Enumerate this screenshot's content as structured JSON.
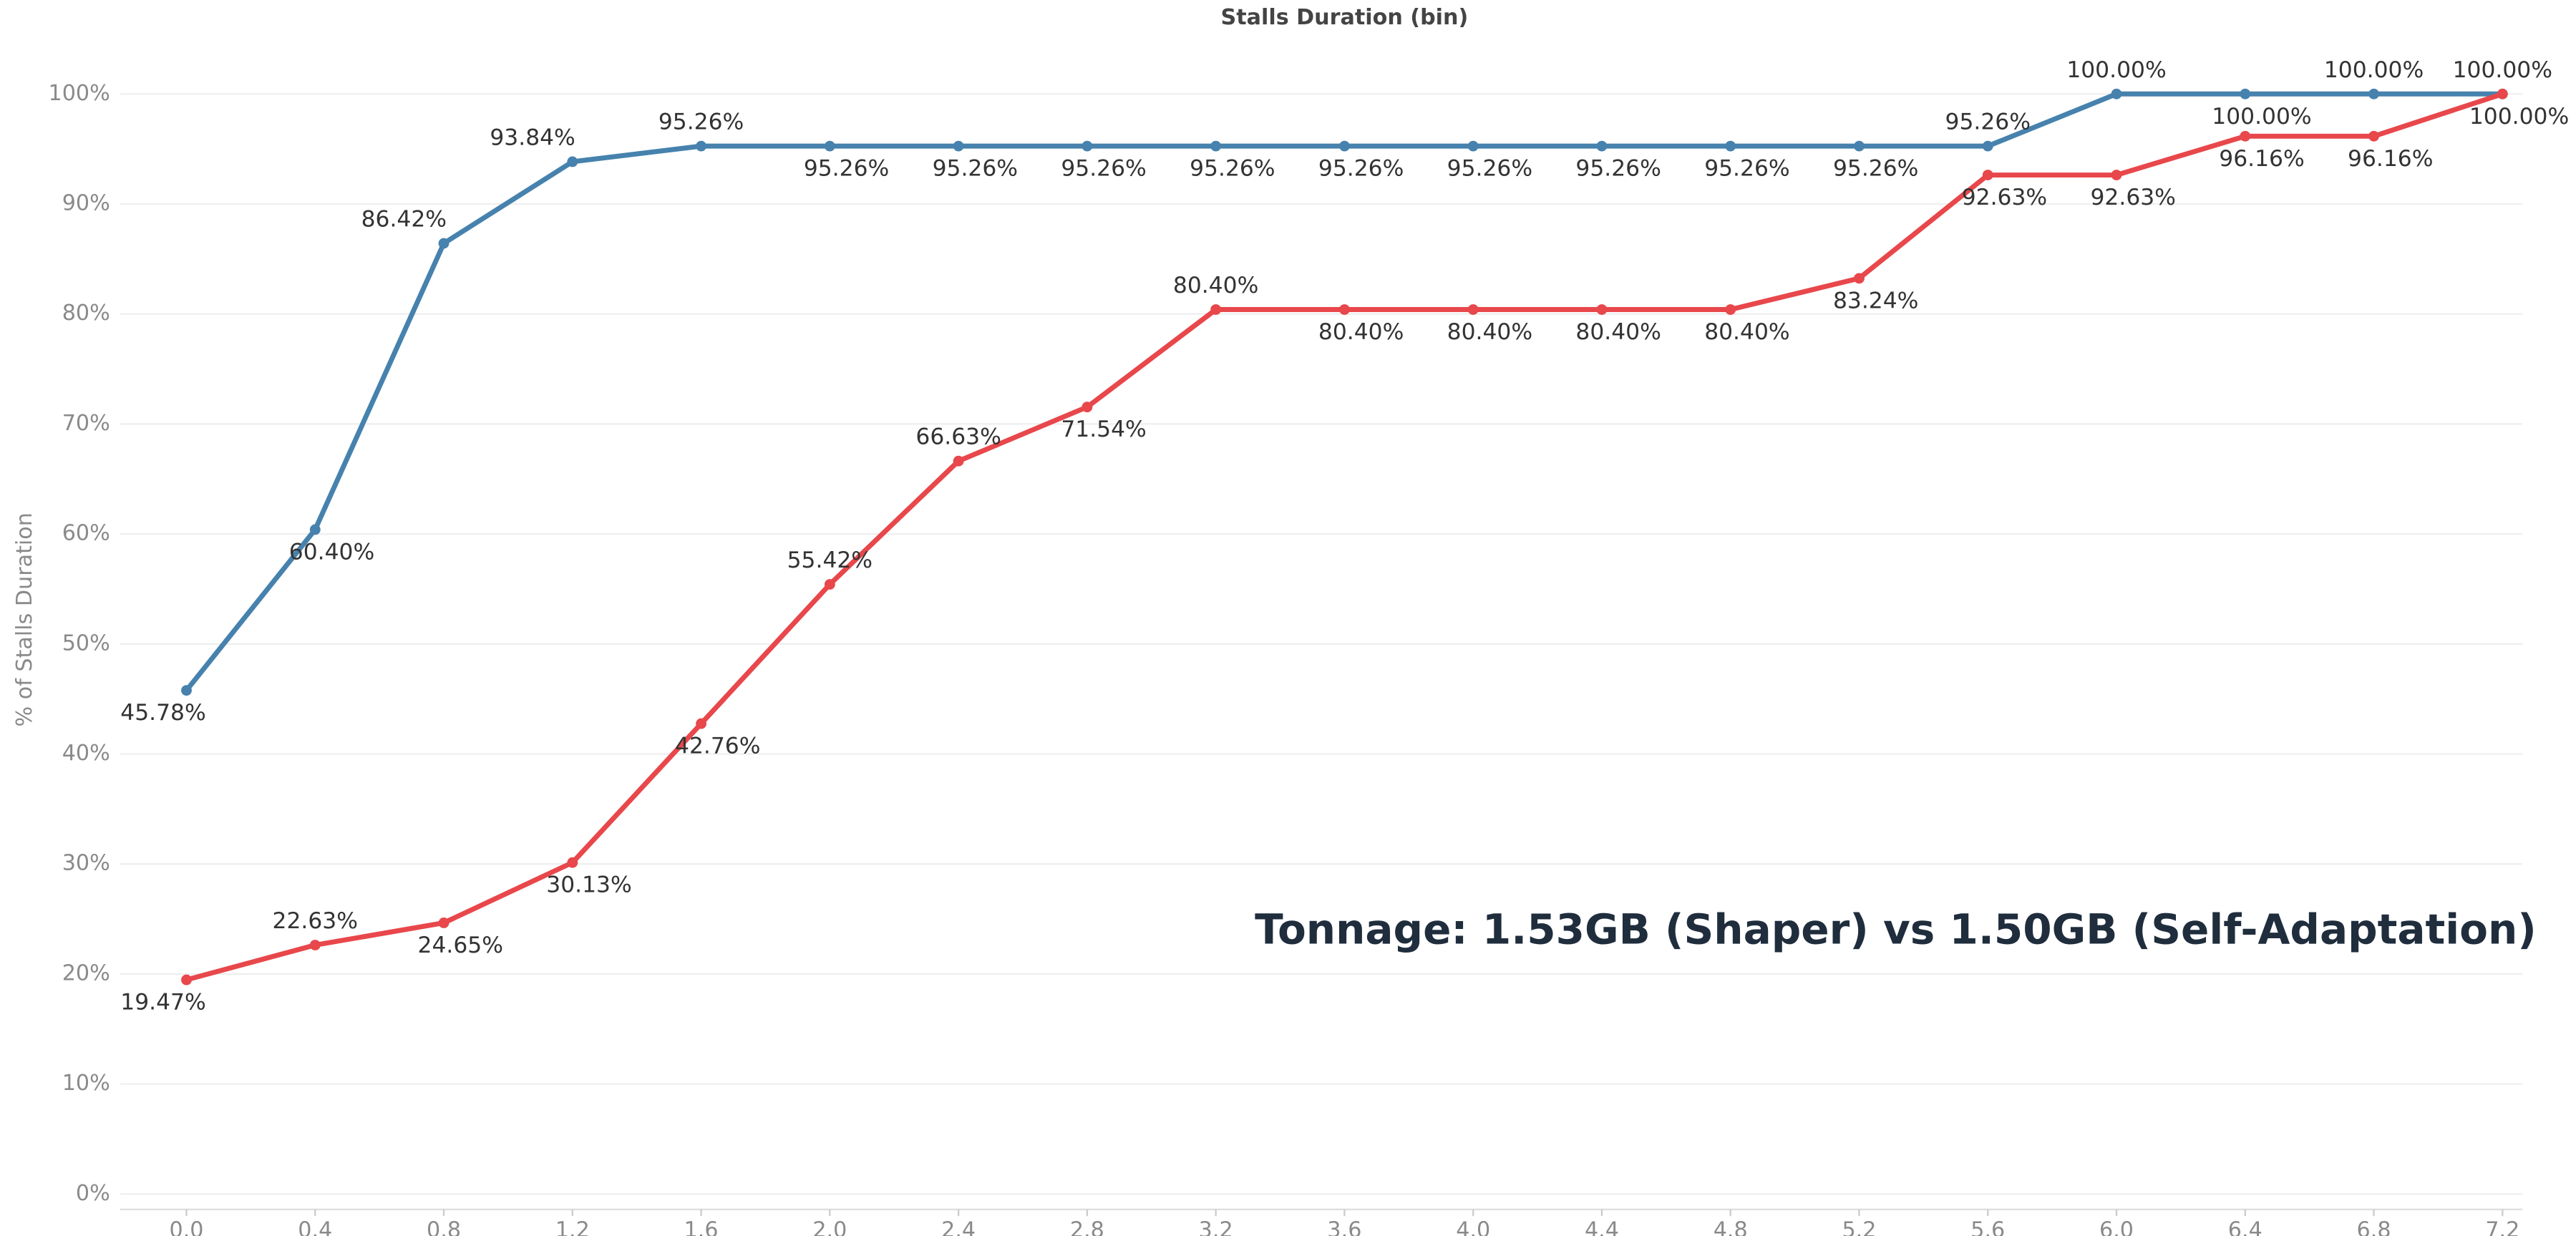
{
  "chart_data": {
    "type": "line",
    "title": "Stalls Duration (bin)",
    "y_label": "% of Stalls Duration",
    "annotation": "Tonnage: 1.53GB (Shaper) vs 1.50GB (Self-Adaptation)",
    "categories": [
      "0.0",
      "0.4",
      "0.8",
      "1.2",
      "1.6",
      "2.0",
      "2.4",
      "2.8",
      "3.2",
      "3.6",
      "4.0",
      "4.4",
      "4.8",
      "5.2",
      "5.6",
      "6.0",
      "6.4",
      "6.8",
      "7.2"
    ],
    "series": [
      {
        "color": "#4682ad",
        "values": [
          45.78,
          60.4,
          86.42,
          93.84,
          95.26,
          95.26,
          95.26,
          95.26,
          95.26,
          95.26,
          95.26,
          95.26,
          95.26,
          95.26,
          95.26,
          100.0,
          100.0,
          100.0,
          100.0
        ],
        "value_labels": [
          "45.78%",
          "60.40%",
          "86.42%",
          "93.84%",
          "95.26%",
          "95.26%",
          "95.26%",
          "95.26%",
          "95.26%",
          "95.26%",
          "95.26%",
          "95.26%",
          "95.26%",
          "95.26%",
          "95.26%",
          "100.00%",
          "100.00%",
          "100.00%",
          "100.00%"
        ]
      },
      {
        "color": "#e8474b",
        "values": [
          19.47,
          22.63,
          24.65,
          30.13,
          42.76,
          55.42,
          66.63,
          71.54,
          80.4,
          80.4,
          80.4,
          80.4,
          80.4,
          83.24,
          92.63,
          92.63,
          96.16,
          96.16,
          100.0
        ],
        "value_labels": [
          "19.47%",
          "22.63%",
          "24.65%",
          "30.13%",
          "42.76%",
          "55.42%",
          "66.63%",
          "71.54%",
          "80.40%",
          "80.40%",
          "80.40%",
          "80.40%",
          "80.40%",
          "83.24%",
          "92.63%",
          "92.63%",
          "96.16%",
          "96.16%",
          "100.00%"
        ]
      }
    ],
    "ylim": [
      -1.4,
      102.5
    ],
    "yticks": [
      {
        "value": 0,
        "label": "0%"
      },
      {
        "value": 10,
        "label": "10%"
      },
      {
        "value": 20,
        "label": "20%"
      },
      {
        "value": 30,
        "label": "30%"
      },
      {
        "value": 40,
        "label": "40%"
      },
      {
        "value": 50,
        "label": "50%"
      },
      {
        "value": 60,
        "label": "60%"
      },
      {
        "value": 70,
        "label": "70%"
      },
      {
        "value": 80,
        "label": "80%"
      },
      {
        "value": 90,
        "label": "90%"
      },
      {
        "value": 100,
        "label": "100%"
      }
    ],
    "grid": true
  }
}
